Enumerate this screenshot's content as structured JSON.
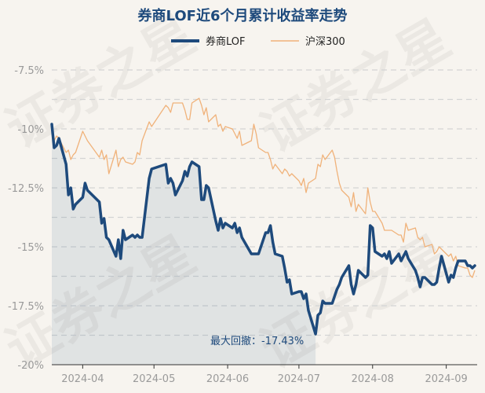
{
  "chart_data": {
    "type": "line",
    "title": "券商LOF近6个月累计收益率走势",
    "xlabel": "",
    "ylabel": "",
    "ylim": [
      -20,
      -6.8
    ],
    "y_ticks": [
      "-7.5%",
      "-10%",
      "-12.5%",
      "-15%",
      "-17.5%",
      "-20%"
    ],
    "y_tick_values": [
      -7.5,
      -10,
      -12.5,
      -15,
      -17.5,
      -20
    ],
    "x_ticks": [
      "2024-04",
      "2024-05",
      "2024-06",
      "2024-07",
      "2024-08",
      "2024-09"
    ],
    "x_tick_dates": [
      "2024-04-01",
      "2024-05-01",
      "2024-06-01",
      "2024-07-01",
      "2024-08-01",
      "2024-09-01"
    ],
    "x_range": [
      "2024-03-19",
      "2024-09-14"
    ],
    "legend_position": "top-center",
    "grid": true,
    "watermark": "证券之星",
    "annotation": "最大回撤：-17.43%",
    "series": [
      {
        "name": "券商LOF",
        "color": "#1e4a7c",
        "area": true,
        "points": [
          [
            "2024-03-19",
            -9.8
          ],
          [
            "2024-03-20",
            -10.8
          ],
          [
            "2024-03-21",
            -10.7
          ],
          [
            "2024-03-22",
            -10.4
          ],
          [
            "2024-03-25",
            -11.5
          ],
          [
            "2024-03-26",
            -12.8
          ],
          [
            "2024-03-27",
            -12.5
          ],
          [
            "2024-03-28",
            -13.4
          ],
          [
            "2024-03-29",
            -13.2
          ],
          [
            "2024-04-01",
            -12.9
          ],
          [
            "2024-04-02",
            -12.3
          ],
          [
            "2024-04-03",
            -12.6
          ],
          [
            "2024-04-08",
            -13.1
          ],
          [
            "2024-04-09",
            -14.0
          ],
          [
            "2024-04-10",
            -13.8
          ],
          [
            "2024-04-11",
            -14.6
          ],
          [
            "2024-04-12",
            -14.7
          ],
          [
            "2024-04-15",
            -15.4
          ],
          [
            "2024-04-16",
            -14.7
          ],
          [
            "2024-04-17",
            -15.5
          ],
          [
            "2024-04-18",
            -14.3
          ],
          [
            "2024-04-19",
            -14.7
          ],
          [
            "2024-04-22",
            -14.5
          ],
          [
            "2024-04-23",
            -14.6
          ],
          [
            "2024-04-24",
            -14.5
          ],
          [
            "2024-04-25",
            -14.6
          ],
          [
            "2024-04-26",
            -14.6
          ],
          [
            "2024-04-29",
            -12.1
          ],
          [
            "2024-04-30",
            -11.7
          ],
          [
            "2024-05-06",
            -11.5
          ],
          [
            "2024-05-07",
            -12.3
          ],
          [
            "2024-05-08",
            -12.1
          ],
          [
            "2024-05-09",
            -12.3
          ],
          [
            "2024-05-10",
            -12.8
          ],
          [
            "2024-05-13",
            -12.2
          ],
          [
            "2024-05-14",
            -11.8
          ],
          [
            "2024-05-15",
            -12.0
          ],
          [
            "2024-05-16",
            -11.6
          ],
          [
            "2024-05-17",
            -11.4
          ],
          [
            "2024-05-20",
            -11.6
          ],
          [
            "2024-05-21",
            -13.0
          ],
          [
            "2024-05-22",
            -13.0
          ],
          [
            "2024-05-23",
            -12.4
          ],
          [
            "2024-05-24",
            -12.5
          ],
          [
            "2024-05-27",
            -13.9
          ],
          [
            "2024-05-28",
            -14.3
          ],
          [
            "2024-05-29",
            -13.8
          ],
          [
            "2024-05-30",
            -14.2
          ],
          [
            "2024-05-31",
            -14.0
          ],
          [
            "2024-06-03",
            -14.2
          ],
          [
            "2024-06-04",
            -14.0
          ],
          [
            "2024-06-05",
            -14.4
          ],
          [
            "2024-06-06",
            -14.2
          ],
          [
            "2024-06-07",
            -14.6
          ],
          [
            "2024-06-11",
            -15.3
          ],
          [
            "2024-06-12",
            -15.3
          ],
          [
            "2024-06-13",
            -15.3
          ],
          [
            "2024-06-14",
            -15.3
          ],
          [
            "2024-06-17",
            -14.4
          ],
          [
            "2024-06-18",
            -14.4
          ],
          [
            "2024-06-19",
            -14.1
          ],
          [
            "2024-06-20",
            -14.8
          ],
          [
            "2024-06-21",
            -15.3
          ],
          [
            "2024-06-24",
            -15.4
          ],
          [
            "2024-06-25",
            -15.9
          ],
          [
            "2024-06-26",
            -16.5
          ],
          [
            "2024-06-27",
            -16.4
          ],
          [
            "2024-06-28",
            -17.0
          ],
          [
            "2024-07-01",
            -16.9
          ],
          [
            "2024-07-02",
            -16.9
          ],
          [
            "2024-07-03",
            -17.2
          ],
          [
            "2024-07-04",
            -17.0
          ],
          [
            "2024-07-05",
            -17.7
          ],
          [
            "2024-07-08",
            -18.7
          ],
          [
            "2024-07-09",
            -17.9
          ],
          [
            "2024-07-10",
            -17.8
          ],
          [
            "2024-07-11",
            -17.3
          ],
          [
            "2024-07-12",
            -17.4
          ],
          [
            "2024-07-15",
            -17.4
          ],
          [
            "2024-07-16",
            -17.1
          ],
          [
            "2024-07-17",
            -16.8
          ],
          [
            "2024-07-18",
            -16.6
          ],
          [
            "2024-07-19",
            -16.3
          ],
          [
            "2024-07-22",
            -15.8
          ],
          [
            "2024-07-23",
            -16.6
          ],
          [
            "2024-07-24",
            -17.0
          ],
          [
            "2024-07-25",
            -16.6
          ],
          [
            "2024-07-26",
            -16.0
          ],
          [
            "2024-07-29",
            -16.3
          ],
          [
            "2024-07-30",
            -16.2
          ],
          [
            "2024-07-31",
            -14.1
          ],
          [
            "2024-08-01",
            -14.2
          ],
          [
            "2024-08-02",
            -15.2
          ],
          [
            "2024-08-05",
            -15.4
          ],
          [
            "2024-08-06",
            -15.3
          ],
          [
            "2024-08-07",
            -15.5
          ],
          [
            "2024-08-08",
            -15.2
          ],
          [
            "2024-08-09",
            -15.7
          ],
          [
            "2024-08-12",
            -15.3
          ],
          [
            "2024-08-13",
            -15.6
          ],
          [
            "2024-08-14",
            -15.4
          ],
          [
            "2024-08-15",
            -15.2
          ],
          [
            "2024-08-16",
            -15.5
          ],
          [
            "2024-08-19",
            -16.0
          ],
          [
            "2024-08-20",
            -16.3
          ],
          [
            "2024-08-21",
            -16.7
          ],
          [
            "2024-08-22",
            -16.3
          ],
          [
            "2024-08-23",
            -16.3
          ],
          [
            "2024-08-26",
            -16.6
          ],
          [
            "2024-08-27",
            -16.6
          ],
          [
            "2024-08-28",
            -16.5
          ],
          [
            "2024-08-29",
            -15.9
          ],
          [
            "2024-08-30",
            -15.4
          ],
          [
            "2024-09-02",
            -16.5
          ],
          [
            "2024-09-03",
            -16.2
          ],
          [
            "2024-09-04",
            -16.3
          ],
          [
            "2024-09-05",
            -15.9
          ],
          [
            "2024-09-06",
            -15.6
          ],
          [
            "2024-09-09",
            -15.6
          ],
          [
            "2024-09-10",
            -15.8
          ],
          [
            "2024-09-11",
            -15.8
          ],
          [
            "2024-09-12",
            -15.9
          ],
          [
            "2024-09-13",
            -15.8
          ]
        ]
      },
      {
        "name": "沪深300",
        "color": "#f0b27a",
        "area": false,
        "points": [
          [
            "2024-03-19",
            -9.9
          ],
          [
            "2024-03-20",
            -10.5
          ],
          [
            "2024-03-21",
            -10.3
          ],
          [
            "2024-03-22",
            -10.4
          ],
          [
            "2024-03-25",
            -11.0
          ],
          [
            "2024-03-26",
            -10.9
          ],
          [
            "2024-03-27",
            -11.3
          ],
          [
            "2024-03-28",
            -11.1
          ],
          [
            "2024-03-29",
            -11.0
          ],
          [
            "2024-04-01",
            -10.1
          ],
          [
            "2024-04-02",
            -10.3
          ],
          [
            "2024-04-03",
            -10.5
          ],
          [
            "2024-04-08",
            -11.2
          ],
          [
            "2024-04-09",
            -10.9
          ],
          [
            "2024-04-10",
            -11.3
          ],
          [
            "2024-04-11",
            -11.1
          ],
          [
            "2024-04-12",
            -11.9
          ],
          [
            "2024-04-15",
            -10.9
          ],
          [
            "2024-04-16",
            -11.6
          ],
          [
            "2024-04-17",
            -11.3
          ],
          [
            "2024-04-18",
            -11.2
          ],
          [
            "2024-04-19",
            -11.4
          ],
          [
            "2024-04-22",
            -11.5
          ],
          [
            "2024-04-23",
            -11.4
          ],
          [
            "2024-04-24",
            -11.0
          ],
          [
            "2024-04-25",
            -11.1
          ],
          [
            "2024-04-26",
            -10.5
          ],
          [
            "2024-04-29",
            -9.7
          ],
          [
            "2024-04-30",
            -9.9
          ],
          [
            "2024-05-06",
            -9.0
          ],
          [
            "2024-05-07",
            -9.1
          ],
          [
            "2024-05-08",
            -9.3
          ],
          [
            "2024-05-09",
            -8.9
          ],
          [
            "2024-05-10",
            -8.9
          ],
          [
            "2024-05-13",
            -8.9
          ],
          [
            "2024-05-14",
            -9.2
          ],
          [
            "2024-05-15",
            -9.6
          ],
          [
            "2024-05-16",
            -9.6
          ],
          [
            "2024-05-17",
            -8.9
          ],
          [
            "2024-05-20",
            -8.7
          ],
          [
            "2024-05-21",
            -9.0
          ],
          [
            "2024-05-22",
            -9.4
          ],
          [
            "2024-05-23",
            -9.1
          ],
          [
            "2024-05-24",
            -9.7
          ],
          [
            "2024-05-27",
            -9.4
          ],
          [
            "2024-05-28",
            -9.9
          ],
          [
            "2024-05-29",
            -9.8
          ],
          [
            "2024-05-30",
            -10.1
          ],
          [
            "2024-05-31",
            -9.9
          ],
          [
            "2024-06-03",
            -10.0
          ],
          [
            "2024-06-04",
            -10.2
          ],
          [
            "2024-06-05",
            -10.4
          ],
          [
            "2024-06-06",
            -10.1
          ],
          [
            "2024-06-07",
            -10.7
          ],
          [
            "2024-06-11",
            -10.5
          ],
          [
            "2024-06-12",
            -9.8
          ],
          [
            "2024-06-13",
            -10.2
          ],
          [
            "2024-06-14",
            -10.8
          ],
          [
            "2024-06-17",
            -11.0
          ],
          [
            "2024-06-18",
            -11.0
          ],
          [
            "2024-06-19",
            -11.3
          ],
          [
            "2024-06-20",
            -11.7
          ],
          [
            "2024-06-21",
            -11.5
          ],
          [
            "2024-06-24",
            -11.9
          ],
          [
            "2024-06-25",
            -11.7
          ],
          [
            "2024-06-26",
            -11.8
          ],
          [
            "2024-06-27",
            -12.0
          ],
          [
            "2024-06-28",
            -11.9
          ],
          [
            "2024-07-01",
            -12.2
          ],
          [
            "2024-07-02",
            -12.4
          ],
          [
            "2024-07-03",
            -12.1
          ],
          [
            "2024-07-04",
            -12.7
          ],
          [
            "2024-07-05",
            -12.3
          ],
          [
            "2024-07-08",
            -12.1
          ],
          [
            "2024-07-09",
            -11.5
          ],
          [
            "2024-07-10",
            -11.6
          ],
          [
            "2024-07-11",
            -11.1
          ],
          [
            "2024-07-12",
            -11.3
          ],
          [
            "2024-07-15",
            -10.9
          ],
          [
            "2024-07-16",
            -11.2
          ],
          [
            "2024-07-17",
            -11.8
          ],
          [
            "2024-07-18",
            -12.3
          ],
          [
            "2024-07-19",
            -12.6
          ],
          [
            "2024-07-22",
            -12.9
          ],
          [
            "2024-07-23",
            -13.3
          ],
          [
            "2024-07-24",
            -12.7
          ],
          [
            "2024-07-25",
            -13.5
          ],
          [
            "2024-07-26",
            -13.2
          ],
          [
            "2024-07-29",
            -13.6
          ],
          [
            "2024-07-30",
            -12.5
          ],
          [
            "2024-07-31",
            -13.1
          ],
          [
            "2024-08-01",
            -13.5
          ],
          [
            "2024-08-02",
            -13.5
          ],
          [
            "2024-08-05",
            -14.0
          ],
          [
            "2024-08-06",
            -14.3
          ],
          [
            "2024-08-07",
            -14.3
          ],
          [
            "2024-08-08",
            -14.3
          ],
          [
            "2024-08-09",
            -14.3
          ],
          [
            "2024-08-12",
            -14.5
          ],
          [
            "2024-08-13",
            -14.5
          ],
          [
            "2024-08-14",
            -14.8
          ],
          [
            "2024-08-15",
            -14.0
          ],
          [
            "2024-08-16",
            -14.3
          ],
          [
            "2024-08-19",
            -14.2
          ],
          [
            "2024-08-20",
            -14.6
          ],
          [
            "2024-08-21",
            -14.7
          ],
          [
            "2024-08-22",
            -14.6
          ],
          [
            "2024-08-23",
            -15.0
          ],
          [
            "2024-08-26",
            -14.9
          ],
          [
            "2024-08-27",
            -15.3
          ],
          [
            "2024-08-28",
            -15.2
          ],
          [
            "2024-08-29",
            -15.0
          ],
          [
            "2024-08-30",
            -15.1
          ],
          [
            "2024-09-02",
            -15.4
          ],
          [
            "2024-09-03",
            -15.3
          ],
          [
            "2024-09-04",
            -15.6
          ],
          [
            "2024-09-05",
            -15.4
          ],
          [
            "2024-09-06",
            -15.8
          ],
          [
            "2024-09-09",
            -15.9
          ],
          [
            "2024-09-10",
            -15.9
          ],
          [
            "2024-09-11",
            -16.2
          ],
          [
            "2024-09-12",
            -16.3
          ],
          [
            "2024-09-13",
            -16.0
          ]
        ]
      }
    ]
  }
}
